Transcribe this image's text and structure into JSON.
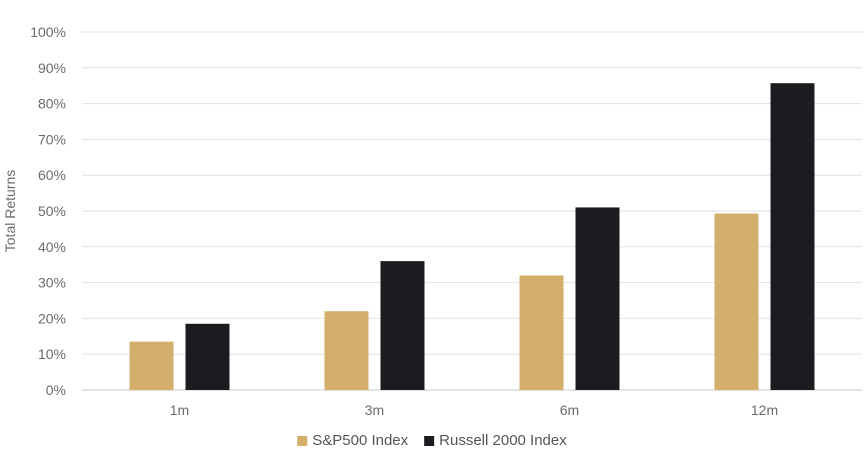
{
  "chart_data": {
    "type": "bar",
    "title": "",
    "xlabel": "",
    "ylabel": "Total Returns",
    "categories": [
      "1m",
      "3m",
      "6m",
      "12m"
    ],
    "series": [
      {
        "name": "S&P500 Index",
        "color": "#d4ae6b",
        "values": [
          13.5,
          22,
          32,
          49.3
        ]
      },
      {
        "name": "Russell 2000 Index",
        "color": "#1a1c20",
        "values": [
          18.5,
          36,
          51,
          85.7
        ]
      }
    ],
    "ylim": [
      0,
      100
    ],
    "yticks": [
      "0%",
      "10%",
      "20%",
      "30%",
      "40%",
      "50%",
      "60%",
      "70%",
      "80%",
      "90%",
      "100%"
    ],
    "grid": true,
    "legend_position": "bottom-center"
  }
}
